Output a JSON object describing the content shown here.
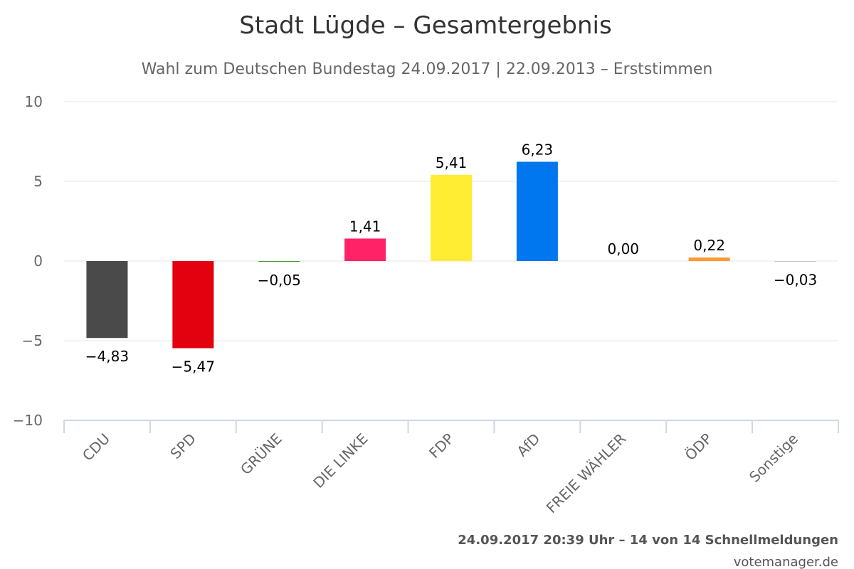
{
  "chart_data": {
    "type": "bar",
    "title": "Stadt Lügde – Gesamtergebnis",
    "subtitle": "Wahl zum Deutschen Bundestag 24.09.2017 | 22.09.2013 – Erststimmen",
    "categories": [
      "CDU",
      "SPD",
      "GRÜNE",
      "DIE LINKE",
      "FDP",
      "AfD",
      "FREIE WÄHLER",
      "ÖDP",
      "Sonstige"
    ],
    "values": [
      -4.83,
      -5.47,
      -0.05,
      1.41,
      5.41,
      6.23,
      0.0,
      0.22,
      -0.03
    ],
    "value_labels": [
      "−4,83",
      "−5,47",
      "−0,05",
      "1,41",
      "5,41",
      "6,23",
      "0,00",
      "0,22",
      "−0,03"
    ],
    "colors": [
      "#4a4a4a",
      "#e3000f",
      "#46962b",
      "#ff2266",
      "#ffed33",
      "#0077ee",
      "#1a2e66",
      "#ff9933",
      "#aaaaaa"
    ],
    "ylim": [
      -10,
      10
    ],
    "yticks": [
      10,
      5,
      0,
      -5,
      -10
    ],
    "ytick_labels": [
      "10",
      "5",
      "0",
      "−5",
      "−10"
    ],
    "grid": true,
    "xlabel": "",
    "ylabel": ""
  },
  "footer": {
    "status": "24.09.2017 20:39 Uhr – 14 von 14 Schnellmeldungen",
    "credit": "votemanager.de"
  }
}
